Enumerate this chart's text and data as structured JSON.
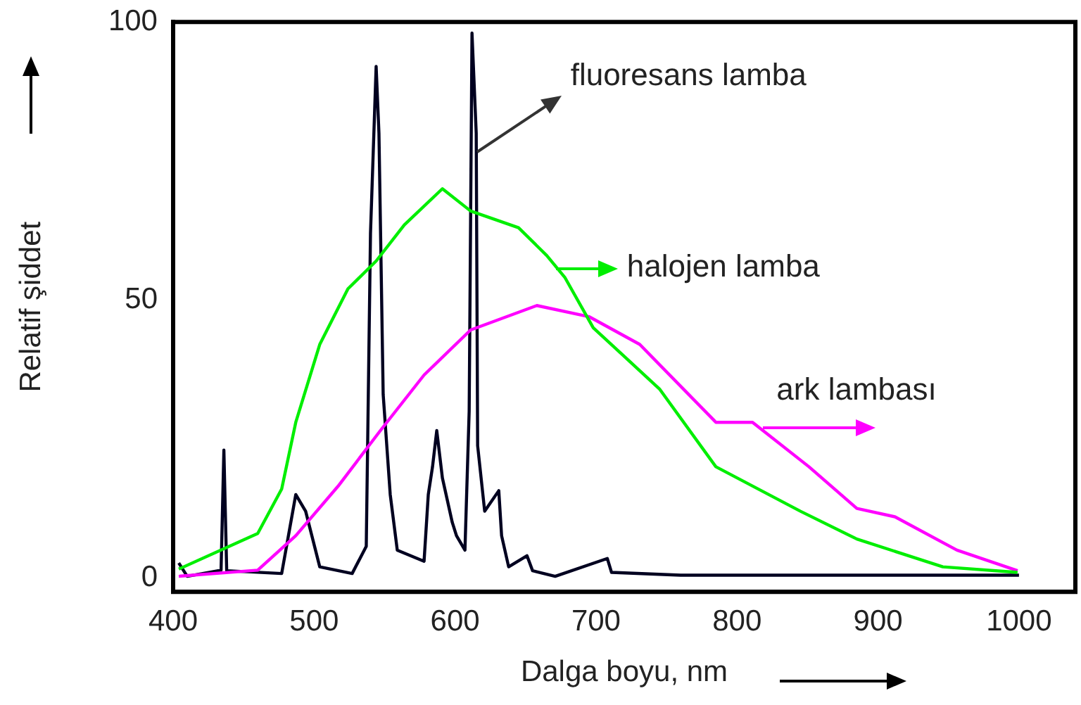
{
  "chart_data": {
    "type": "line",
    "xlabel": "Dalga boyu, nm",
    "ylabel": "Relatif şiddet",
    "xlim": [
      400,
      1040
    ],
    "xticks": [
      400,
      500,
      600,
      700,
      800,
      900,
      1000
    ],
    "ylim": [
      -2.5,
      100
    ],
    "yticks": [
      0,
      50,
      100
    ],
    "grid": false,
    "legend": false,
    "marker": "none",
    "line_style": "solid",
    "series": [
      {
        "color": "#00ee00",
        "x": [
          404,
          460,
          477,
          487,
          504,
          524,
          544,
          564,
          591,
          611,
          645,
          665,
          678,
          698,
          745,
          785,
          845,
          885,
          946,
          999
        ],
        "values": [
          1.6,
          8,
          16,
          28,
          42,
          52,
          57,
          63.5,
          70,
          66,
          63,
          58,
          54,
          45,
          34,
          20,
          12,
          7,
          2,
          1
        ]
      },
      {
        "color": "#ff00ff",
        "x": [
          404,
          460,
          487,
          517,
          547,
          578,
          611,
          658,
          695,
          731,
          785,
          811,
          851,
          885,
          912,
          956,
          999
        ],
        "values": [
          0.3,
          1.4,
          7.6,
          16.5,
          26.5,
          36.5,
          44.6,
          49,
          47,
          42,
          28,
          28,
          20,
          12.5,
          11,
          5,
          1.3
        ]
      },
      {
        "color": "#000020",
        "x": [
          404,
          410,
          434,
          436,
          438,
          477,
          487,
          494,
          504,
          527,
          537,
          540,
          544,
          546,
          549,
          554,
          559,
          578,
          581,
          584,
          587,
          591,
          598,
          601,
          607,
          610,
          612,
          615,
          616,
          621,
          631,
          633,
          638,
          651,
          655,
          671,
          708,
          711,
          760,
          850,
          950,
          1000
        ],
        "values": [
          2.7,
          0.3,
          1.4,
          23,
          1.3,
          0.8,
          15,
          12,
          2,
          0.8,
          5.7,
          62,
          92,
          80,
          33,
          15,
          5,
          3,
          15,
          20,
          26.5,
          18,
          10,
          7.6,
          5,
          30,
          98,
          80,
          23.8,
          12,
          15.7,
          7.6,
          2,
          4,
          1.3,
          0.3,
          3.5,
          1,
          0.5,
          0.5,
          0.5,
          0.5
        ]
      }
    ],
    "annotations": [
      {
        "text": "fluoresans lamba",
        "x": 616,
        "y": 76.5
      },
      {
        "text": "halojen lamba",
        "x": 672,
        "y": 55.7
      },
      {
        "text": "ark lambası",
        "x": 818,
        "y": 27
      }
    ]
  }
}
